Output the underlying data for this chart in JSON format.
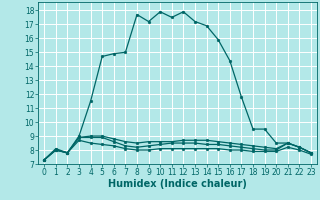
{
  "xlabel": "Humidex (Indice chaleur)",
  "bg_color": "#b3e8e8",
  "grid_color": "#ffffff",
  "line_color": "#006666",
  "xlim": [
    -0.5,
    23.5
  ],
  "ylim": [
    7,
    18.6
  ],
  "xticks": [
    0,
    1,
    2,
    3,
    4,
    5,
    6,
    7,
    8,
    9,
    10,
    11,
    12,
    13,
    14,
    15,
    16,
    17,
    18,
    19,
    20,
    21,
    22,
    23
  ],
  "yticks": [
    7,
    8,
    9,
    10,
    11,
    12,
    13,
    14,
    15,
    16,
    17,
    18
  ],
  "series": [
    [
      7.3,
      8.1,
      7.8,
      9.0,
      11.5,
      14.7,
      14.9,
      15.0,
      17.7,
      17.2,
      17.9,
      17.5,
      17.9,
      17.2,
      16.9,
      15.9,
      14.4,
      11.8,
      9.5,
      9.5,
      8.5,
      8.5,
      8.2,
      7.8
    ],
    [
      7.3,
      8.0,
      7.8,
      8.9,
      9.0,
      9.0,
      8.8,
      8.6,
      8.5,
      8.6,
      8.6,
      8.6,
      8.7,
      8.7,
      8.7,
      8.6,
      8.5,
      8.4,
      8.3,
      8.2,
      8.1,
      8.5,
      8.2,
      7.8
    ],
    [
      7.3,
      8.0,
      7.8,
      8.9,
      8.9,
      8.9,
      8.6,
      8.3,
      8.2,
      8.3,
      8.4,
      8.5,
      8.5,
      8.5,
      8.4,
      8.4,
      8.3,
      8.2,
      8.1,
      8.0,
      8.0,
      8.5,
      8.2,
      7.8
    ],
    [
      7.3,
      8.0,
      7.8,
      8.7,
      8.5,
      8.4,
      8.3,
      8.1,
      8.0,
      8.0,
      8.1,
      8.1,
      8.1,
      8.1,
      8.1,
      8.1,
      8.0,
      8.0,
      7.9,
      7.9,
      7.9,
      8.2,
      8.0,
      7.7
    ]
  ],
  "xlabel_fontsize": 7,
  "tick_fontsize": 5.5,
  "linewidth": 0.9,
  "markersize": 2.0
}
